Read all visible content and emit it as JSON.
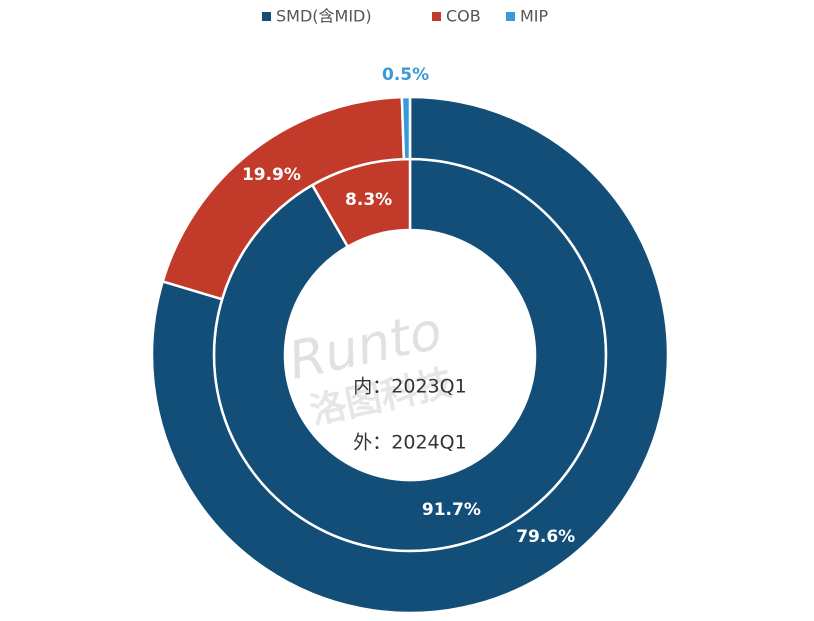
{
  "chart_data": {
    "type": "nested-donut",
    "categories": [
      "SMD(含MID)",
      "COB",
      "MIP"
    ],
    "colors": [
      "#124e78",
      "#c23b2a",
      "#3a9ad9"
    ],
    "rings": [
      {
        "name": "内：2023Q1",
        "values": [
          91.7,
          8.3,
          null
        ],
        "value_labels": [
          "91.7%",
          "8.3%",
          null
        ]
      },
      {
        "name": "外：2024Q1",
        "values": [
          79.6,
          19.9,
          0.5
        ],
        "value_labels": [
          "79.6%",
          "19.9%",
          "0.5%"
        ]
      }
    ],
    "watermark": [
      "Runto",
      "洛图科技"
    ]
  }
}
